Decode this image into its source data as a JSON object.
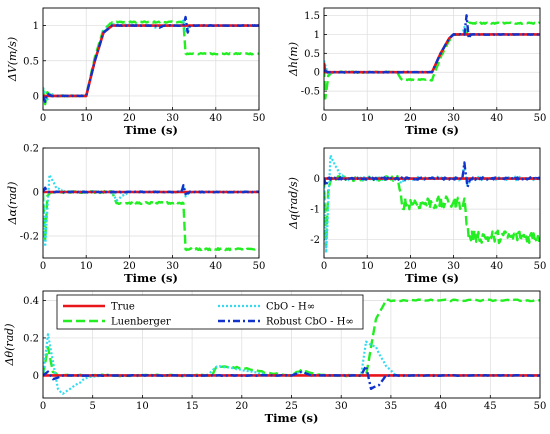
{
  "figure": {
    "legend_placement": "top-left of bottom panel",
    "series_styles": [
      {
        "key": "true",
        "color": "#e8151b",
        "dash": "",
        "width": 2.6
      },
      {
        "key": "luenberger",
        "color": "#22ee22",
        "dash": "9 4",
        "width": 2.4
      },
      {
        "key": "cbo",
        "color": "#33dbf0",
        "dash": "2 2",
        "width": 2.2
      },
      {
        "key": "robust",
        "color": "#1133cc",
        "dash": "7 3 2 3",
        "width": 2.4
      }
    ]
  },
  "chart_data": [
    {
      "id": "dV",
      "type": "line",
      "ylabel": "ΔV(m/s)",
      "xlabel": "Time (s)",
      "xlim": [
        0,
        50
      ],
      "ylim": [
        -0.2,
        1.25
      ],
      "xticks": [
        "0",
        "10",
        "20",
        "30",
        "40",
        "50"
      ],
      "yticks": [
        "0",
        "0.5",
        "1"
      ],
      "grid": true,
      "series": [
        {
          "key": "true",
          "points": [
            [
              0,
              0
            ],
            [
              10,
              0
            ],
            [
              12,
              0.5
            ],
            [
              14,
              0.9
            ],
            [
              16,
              1.0
            ],
            [
              50,
              1.0
            ]
          ]
        },
        {
          "key": "luenberger",
          "points": [
            [
              0,
              0.1
            ],
            [
              0.5,
              -0.12
            ],
            [
              1,
              0.05
            ],
            [
              2,
              0
            ],
            [
              10,
              0
            ],
            [
              12,
              0.55
            ],
            [
              14,
              0.95
            ],
            [
              16,
              1.05
            ],
            [
              32.5,
              1.05
            ],
            [
              33,
              0.6
            ],
            [
              50,
              0.6
            ]
          ]
        },
        {
          "key": "cbo",
          "points": [
            [
              0,
              0.12
            ],
            [
              1,
              -0.05
            ],
            [
              2,
              0.03
            ],
            [
              3,
              0
            ],
            [
              10,
              0
            ],
            [
              12,
              0.5
            ],
            [
              14,
              0.92
            ],
            [
              16,
              1.02
            ],
            [
              25,
              1.0
            ],
            [
              26,
              0.97
            ],
            [
              27,
              1.0
            ],
            [
              32,
              1.0
            ],
            [
              32.5,
              1.08
            ],
            [
              33,
              0.92
            ],
            [
              34,
              1.0
            ],
            [
              50,
              1.0
            ]
          ]
        },
        {
          "key": "robust",
          "points": [
            [
              0,
              0
            ],
            [
              0.5,
              -0.08
            ],
            [
              1,
              0.03
            ],
            [
              2,
              0
            ],
            [
              10,
              0
            ],
            [
              12,
              0.5
            ],
            [
              14,
              0.9
            ],
            [
              16,
              1.0
            ],
            [
              26,
              1.0
            ],
            [
              27,
              0.97
            ],
            [
              28,
              1.0
            ],
            [
              32.5,
              1.0
            ],
            [
              33,
              1.12
            ],
            [
              33.5,
              0.9
            ],
            [
              34,
              1.0
            ],
            [
              50,
              1.0
            ]
          ]
        }
      ]
    },
    {
      "id": "dh",
      "type": "line",
      "ylabel": "Δh(m)",
      "xlabel": "Time (s)",
      "xlim": [
        0,
        50
      ],
      "ylim": [
        -1.0,
        1.7
      ],
      "xticks": [
        "0",
        "10",
        "20",
        "30",
        "40",
        "50"
      ],
      "yticks": [
        "-0.5",
        "0",
        "0.5",
        "1",
        "1.5"
      ],
      "grid": true,
      "series": [
        {
          "key": "true",
          "points": [
            [
              0,
              0.25
            ],
            [
              0.3,
              0
            ],
            [
              25,
              0
            ],
            [
              27,
              0.5
            ],
            [
              29,
              0.9
            ],
            [
              30,
              1.0
            ],
            [
              50,
              1.0
            ]
          ]
        },
        {
          "key": "luenberger",
          "points": [
            [
              0,
              0.1
            ],
            [
              0.3,
              -0.7
            ],
            [
              1,
              -0.1
            ],
            [
              2,
              0
            ],
            [
              17,
              0
            ],
            [
              18,
              -0.2
            ],
            [
              25,
              -0.2
            ],
            [
              27,
              0.4
            ],
            [
              29,
              0.85
            ],
            [
              30,
              1.0
            ],
            [
              33,
              1.0
            ],
            [
              33.5,
              1.3
            ],
            [
              50,
              1.3
            ]
          ]
        },
        {
          "key": "cbo",
          "points": [
            [
              0,
              0.3
            ],
            [
              1,
              -0.05
            ],
            [
              2,
              0
            ],
            [
              25,
              0
            ],
            [
              27,
              0.5
            ],
            [
              29,
              0.9
            ],
            [
              30,
              1.0
            ],
            [
              32,
              1.0
            ],
            [
              32.5,
              1.2
            ],
            [
              33,
              1.0
            ],
            [
              50,
              1.0
            ]
          ]
        },
        {
          "key": "robust",
          "points": [
            [
              0,
              0.05
            ],
            [
              1,
              0
            ],
            [
              25,
              0
            ],
            [
              27,
              0.5
            ],
            [
              29,
              0.9
            ],
            [
              30,
              1.0
            ],
            [
              32.5,
              1.0
            ],
            [
              33,
              1.5
            ],
            [
              33.5,
              0.9
            ],
            [
              34,
              1.0
            ],
            [
              50,
              1.0
            ]
          ]
        }
      ]
    },
    {
      "id": "dalpha",
      "type": "line",
      "ylabel": "Δα(rad)",
      "xlabel": "Time (s)",
      "xlim": [
        0,
        50
      ],
      "ylim": [
        -0.3,
        0.2
      ],
      "xticks": [
        "0",
        "10",
        "20",
        "30",
        "40",
        "50"
      ],
      "yticks": [
        "-0.2",
        "0",
        "0.2"
      ],
      "grid": true,
      "series": [
        {
          "key": "true",
          "points": [
            [
              0,
              0
            ],
            [
              50,
              0
            ]
          ]
        },
        {
          "key": "luenberger",
          "points": [
            [
              0,
              0
            ],
            [
              0.5,
              -0.22
            ],
            [
              1,
              -0.02
            ],
            [
              2,
              0
            ],
            [
              16,
              0
            ],
            [
              17,
              -0.05
            ],
            [
              32.5,
              -0.05
            ],
            [
              33,
              -0.26
            ],
            [
              50,
              -0.26
            ]
          ]
        },
        {
          "key": "cbo",
          "points": [
            [
              0,
              0
            ],
            [
              0.5,
              -0.25
            ],
            [
              1.5,
              0.08
            ],
            [
              3,
              0.02
            ],
            [
              5,
              0
            ],
            [
              16,
              0
            ],
            [
              17,
              -0.04
            ],
            [
              18,
              -0.02
            ],
            [
              20,
              0
            ],
            [
              32,
              0
            ],
            [
              32.5,
              0.03
            ],
            [
              33,
              -0.02
            ],
            [
              34,
              0
            ],
            [
              50,
              0
            ]
          ]
        },
        {
          "key": "robust",
          "points": [
            [
              0,
              0
            ],
            [
              0.5,
              0.02
            ],
            [
              1,
              0
            ],
            [
              32,
              0
            ],
            [
              32.5,
              0.03
            ],
            [
              33,
              -0.01
            ],
            [
              34,
              0
            ],
            [
              50,
              0
            ]
          ]
        }
      ]
    },
    {
      "id": "dq",
      "type": "line",
      "ylabel": "Δq(rad/s)",
      "xlabel": "Time (s)",
      "xlim": [
        0,
        50
      ],
      "ylim": [
        -2.6,
        1.0
      ],
      "xticks": [
        "0",
        "10",
        "20",
        "30",
        "40",
        "50"
      ],
      "yticks": [
        "-2",
        "-1",
        "0"
      ],
      "grid": true,
      "series": [
        {
          "key": "true",
          "points": [
            [
              0,
              0
            ],
            [
              50,
              0
            ]
          ]
        },
        {
          "key": "luenberger",
          "points": [
            [
              0,
              0
            ],
            [
              0.5,
              -2.3
            ],
            [
              1,
              -0.2
            ],
            [
              2,
              0
            ],
            [
              17,
              0
            ],
            [
              18,
              -0.8
            ],
            [
              32.5,
              -0.8
            ],
            [
              33.5,
              -1.9
            ],
            [
              50,
              -1.9
            ]
          ]
        },
        {
          "key": "cbo",
          "points": [
            [
              0,
              0
            ],
            [
              0.5,
              -2.4
            ],
            [
              1.5,
              0.8
            ],
            [
              3,
              0.3
            ],
            [
              5,
              0
            ],
            [
              17,
              0
            ],
            [
              18,
              -0.1
            ],
            [
              20,
              0
            ],
            [
              32,
              0
            ],
            [
              32.5,
              0.4
            ],
            [
              33.2,
              -0.2
            ],
            [
              34,
              0
            ],
            [
              50,
              0
            ]
          ]
        },
        {
          "key": "robust",
          "points": [
            [
              0,
              0
            ],
            [
              0.5,
              -0.2
            ],
            [
              1,
              0
            ],
            [
              32,
              0
            ],
            [
              32.5,
              0.5
            ],
            [
              33.2,
              -0.25
            ],
            [
              34,
              0
            ],
            [
              50,
              0
            ]
          ]
        }
      ]
    },
    {
      "id": "dtheta",
      "type": "line",
      "ylabel": "Δθ(rad)",
      "xlabel": "Time (s)",
      "xlim": [
        0,
        50
      ],
      "ylim": [
        -0.12,
        0.45
      ],
      "xticks": [
        "0",
        "5",
        "10",
        "15",
        "20",
        "25",
        "30",
        "35",
        "40",
        "45",
        "50"
      ],
      "yticks": [
        "0",
        "0.2",
        "0.4"
      ],
      "grid": true,
      "legend": {
        "entries": [
          {
            "key": "true",
            "label": "True"
          },
          {
            "key": "cbo",
            "label": "CbO - H∞"
          },
          {
            "key": "luenberger",
            "label": "Luenberger"
          },
          {
            "key": "robust",
            "label": "Robust CbO - H∞"
          }
        ]
      },
      "series": [
        {
          "key": "true",
          "points": [
            [
              0,
              0
            ],
            [
              50,
              0
            ]
          ]
        },
        {
          "key": "luenberger",
          "points": [
            [
              0,
              0
            ],
            [
              0.5,
              0.15
            ],
            [
              1,
              0.02
            ],
            [
              1.5,
              0
            ],
            [
              17,
              0
            ],
            [
              17.5,
              0.05
            ],
            [
              20,
              0.04
            ],
            [
              22,
              0.02
            ],
            [
              25,
              0
            ],
            [
              26,
              0.03
            ],
            [
              27,
              0.01
            ],
            [
              28,
              0
            ],
            [
              32.5,
              0
            ],
            [
              33.5,
              0.3
            ],
            [
              34.5,
              0.4
            ],
            [
              50,
              0.4
            ]
          ]
        },
        {
          "key": "cbo",
          "points": [
            [
              0,
              0
            ],
            [
              0.5,
              0.22
            ],
            [
              1.5,
              -0.07
            ],
            [
              2,
              -0.1
            ],
            [
              3,
              -0.06
            ],
            [
              4.5,
              -0.01
            ],
            [
              6,
              0
            ],
            [
              16.5,
              0
            ],
            [
              17.5,
              0.05
            ],
            [
              19,
              0.04
            ],
            [
              21,
              0.02
            ],
            [
              23,
              0
            ],
            [
              25,
              0
            ],
            [
              26,
              0.02
            ],
            [
              27,
              0
            ],
            [
              32,
              0
            ],
            [
              32.5,
              0.18
            ],
            [
              33.5,
              0.15
            ],
            [
              34.5,
              0.05
            ],
            [
              35.5,
              0
            ],
            [
              50,
              0
            ]
          ]
        },
        {
          "key": "robust",
          "points": [
            [
              0,
              0
            ],
            [
              0.5,
              0.02
            ],
            [
              1,
              -0.02
            ],
            [
              2,
              0
            ],
            [
              25,
              0
            ],
            [
              26,
              0.02
            ],
            [
              27,
              0
            ],
            [
              32,
              0
            ],
            [
              32.5,
              0.05
            ],
            [
              33,
              -0.07
            ],
            [
              33.8,
              -0.05
            ],
            [
              34.5,
              0
            ],
            [
              50,
              0
            ]
          ]
        }
      ]
    }
  ]
}
